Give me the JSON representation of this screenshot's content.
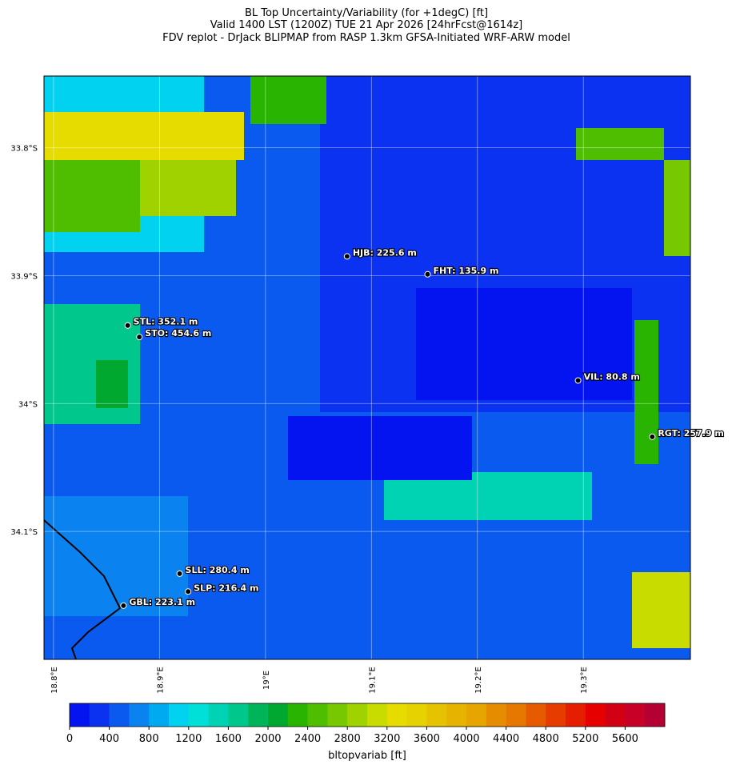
{
  "chart_data": {
    "type": "map",
    "title": [
      "BL Top Uncertainty/Variability (for +1degC) [ft]",
      "Valid 1400 LST (1200Z) TUE 21 Apr 2026 [24hrFcst@1614z]",
      "FDV replot - DrJack BLIPMAP from RASP 1.3km GFSA-Initiated WRF-ARW model"
    ],
    "xlim": [
      18.791,
      19.401
    ],
    "ylim": [
      -34.2,
      -33.744
    ],
    "xticks": [
      {
        "value": 18.8,
        "label": "18.8°E"
      },
      {
        "value": 18.9,
        "label": "18.9°E"
      },
      {
        "value": 19.0,
        "label": "19°E"
      },
      {
        "value": 19.1,
        "label": "19.1°E"
      },
      {
        "value": 19.2,
        "label": "19.2°E"
      },
      {
        "value": 19.3,
        "label": "19.3°E"
      }
    ],
    "yticks": [
      {
        "value": -33.8,
        "label": "33.8°S"
      },
      {
        "value": -33.9,
        "label": "33.9°S"
      },
      {
        "value": -34.0,
        "label": "34°S"
      },
      {
        "value": -34.1,
        "label": "34.1°S"
      }
    ],
    "grid": true,
    "stations": [
      {
        "label": "HJB: 225.6 m",
        "lon": 19.077,
        "lat": -33.885
      },
      {
        "label": "FHT: 135.9 m",
        "lon": 19.153,
        "lat": -33.899
      },
      {
        "label": "STL: 352.1 m",
        "lon": 18.87,
        "lat": -33.939
      },
      {
        "label": "STO: 454.6 m",
        "lon": 18.881,
        "lat": -33.948
      },
      {
        "label": "VIL: 80.8 m",
        "lon": 19.295,
        "lat": -33.982
      },
      {
        "label": "RGT: 257.9 m",
        "lon": 19.365,
        "lat": -34.026
      },
      {
        "label": "SLL: 280.4 m",
        "lon": 18.919,
        "lat": -34.133
      },
      {
        "label": "SLP: 216.4 m",
        "lon": 18.927,
        "lat": -34.147
      },
      {
        "label": "GBL: 223.1 m",
        "lon": 18.866,
        "lat": -34.158
      }
    ],
    "colorbar": {
      "label": "bltopvariab [ft]",
      "lim": [
        0,
        6000
      ],
      "ticks": [
        0,
        400,
        800,
        1200,
        1600,
        2000,
        2400,
        2800,
        3200,
        3600,
        4000,
        4400,
        4800,
        5200,
        5600
      ],
      "colors": [
        "#0414f0",
        "#0a32f0",
        "#0a5af0",
        "#0a82f0",
        "#00aaf0",
        "#00d2f0",
        "#00e0d8",
        "#00d2b4",
        "#00c88c",
        "#00b45a",
        "#00a830",
        "#28b400",
        "#50be00",
        "#78c800",
        "#a0d200",
        "#c8dc00",
        "#e6dc00",
        "#e6d200",
        "#e6c300",
        "#e6b400",
        "#e6a500",
        "#e68c00",
        "#e67800",
        "#e65a00",
        "#e63c00",
        "#e61e00",
        "#e60000",
        "#d20014",
        "#c80028",
        "#b40032"
      ]
    }
  }
}
